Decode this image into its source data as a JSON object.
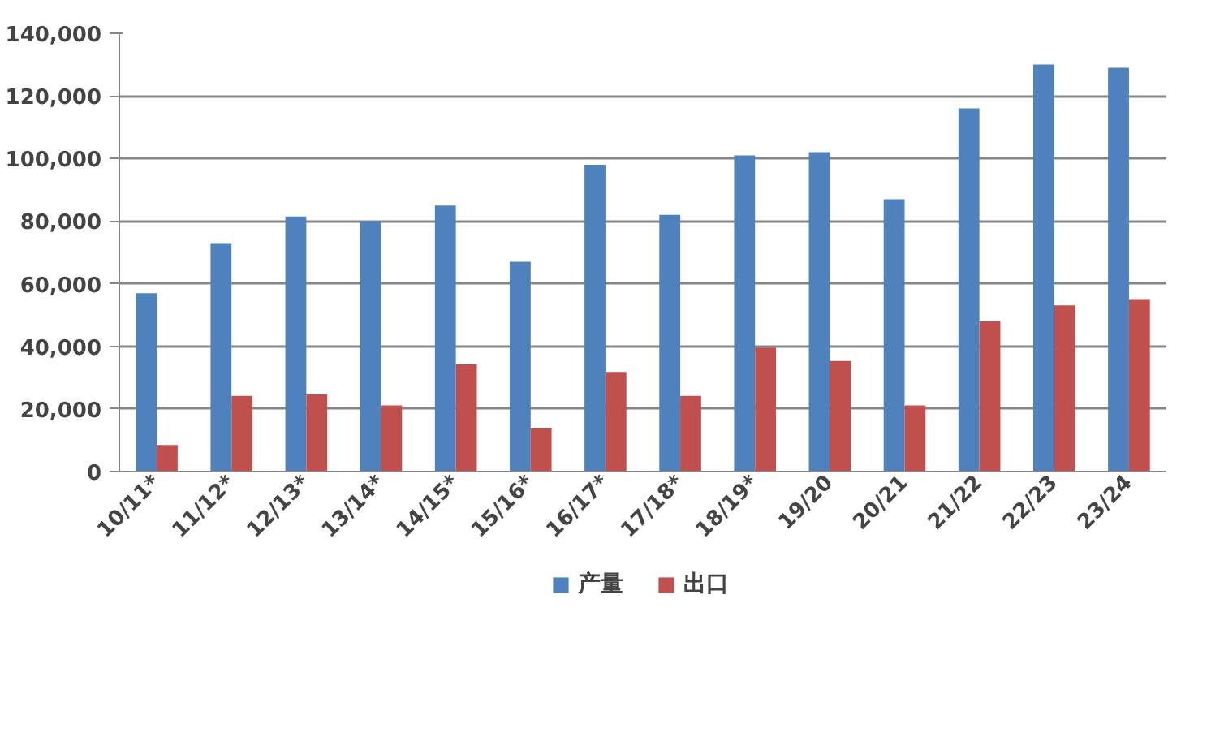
{
  "chart_data": {
    "type": "bar",
    "categories": [
      "10/11*",
      "11/12*",
      "12/13*",
      "13/14*",
      "14/15*",
      "15/16*",
      "16/17*",
      "17/18*",
      "18/19*",
      "19/20",
      "20/21",
      "21/22",
      "22/23",
      "23/24"
    ],
    "series": [
      {
        "name": "产量",
        "color": "#4f81bd",
        "values": [
          57000,
          73000,
          81500,
          80000,
          85000,
          67000,
          98000,
          82000,
          101000,
          102000,
          87000,
          116000,
          130000,
          129000
        ]
      },
      {
        "name": "出口",
        "color": "#c0504d",
        "values": [
          8500,
          24200,
          24700,
          21100,
          34300,
          14000,
          31800,
          24200,
          39600,
          35300,
          21100,
          48000,
          53100,
          55100
        ]
      }
    ],
    "ylim": [
      0,
      140000
    ],
    "yticks": [
      {
        "value": 0,
        "label": "0"
      },
      {
        "value": 20000,
        "label": "20,000"
      },
      {
        "value": 40000,
        "label": "40,000"
      },
      {
        "value": 60000,
        "label": "60,000"
      },
      {
        "value": 80000,
        "label": "80,000"
      },
      {
        "value": 100000,
        "label": "100,000"
      },
      {
        "value": 120000,
        "label": "120,000"
      },
      {
        "value": 140000,
        "label": "140,000"
      }
    ],
    "grid": "y",
    "legend": "bottom"
  }
}
